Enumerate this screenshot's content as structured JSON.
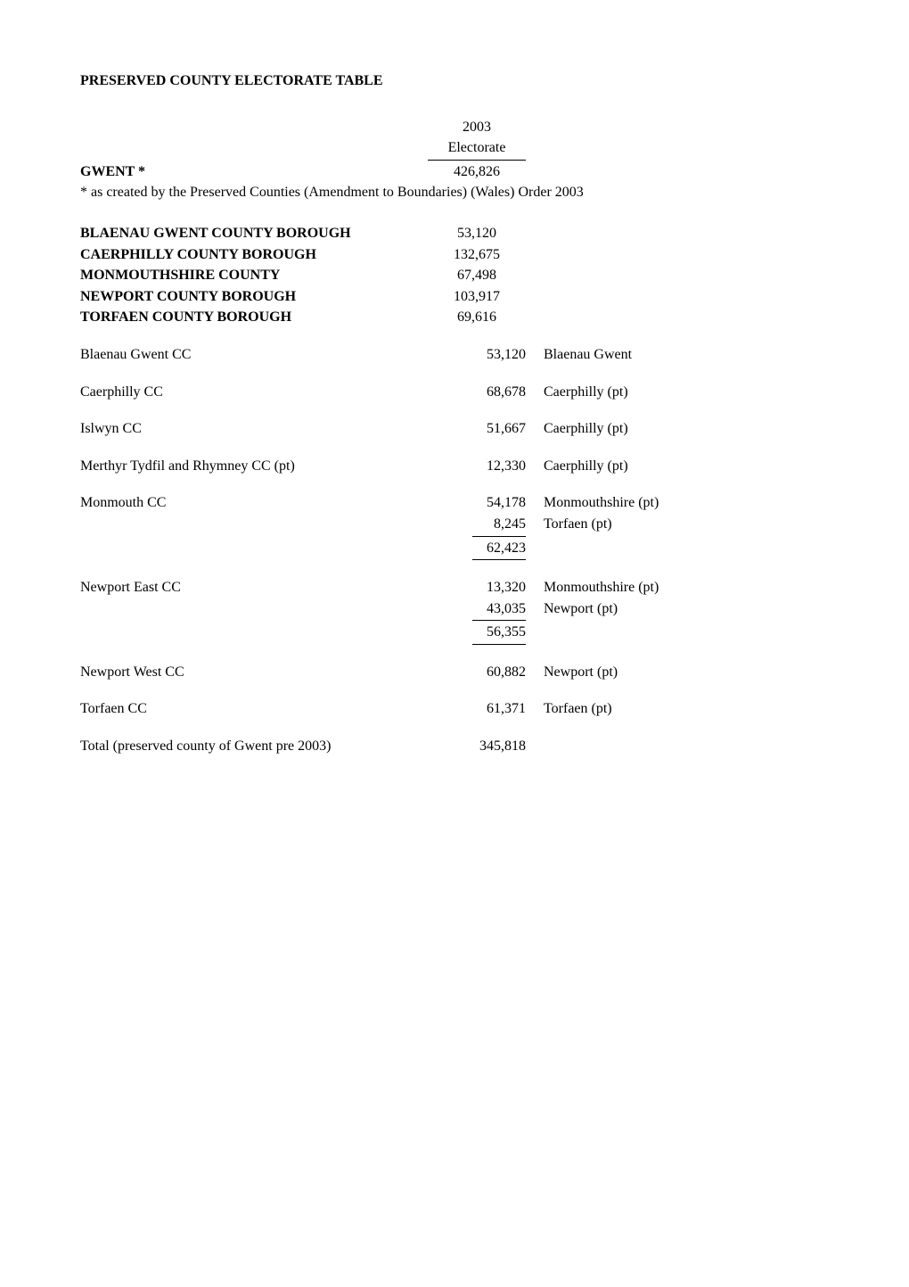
{
  "title": "PRESERVED COUNTY ELECTORATE TABLE",
  "year": "2003",
  "electorate_label": "Electorate",
  "gwent": {
    "label": "GWENT *",
    "value": "426,826"
  },
  "footnote": "* as created by the Preserved Counties (Amendment to Boundaries) (Wales) Order 2003",
  "boroughs": [
    {
      "label": "BLAENAU GWENT COUNTY BOROUGH",
      "value": "53,120"
    },
    {
      "label": "CAERPHILLY COUNTY BOROUGH",
      "value": "132,675"
    },
    {
      "label": "MONMOUTHSHIRE COUNTY",
      "value": "67,498"
    },
    {
      "label": "NEWPORT COUNTY BOROUGH",
      "value": "103,917"
    },
    {
      "label": "TORFAEN COUNTY BOROUGH",
      "value": "69,616"
    }
  ],
  "constituencies": [
    {
      "label": "Blaenau Gwent CC",
      "rows": [
        {
          "value": "53,120",
          "comp": "Blaenau Gwent"
        }
      ]
    },
    {
      "label": "Caerphilly CC",
      "rows": [
        {
          "value": "68,678",
          "comp": "Caerphilly (pt)"
        }
      ]
    },
    {
      "label": "Islwyn CC",
      "rows": [
        {
          "value": "51,667",
          "comp": "Caerphilly (pt)"
        }
      ]
    },
    {
      "label": "Merthyr Tydfil and Rhymney CC (pt)",
      "rows": [
        {
          "value": "12,330",
          "comp": "Caerphilly (pt)"
        }
      ]
    },
    {
      "label": "Monmouth CC",
      "rows": [
        {
          "value": "54,178",
          "comp": "Monmouthshire (pt)"
        },
        {
          "value": "8,245",
          "comp": "Torfaen (pt)",
          "sumline": true
        }
      ],
      "total": "62,423"
    },
    {
      "label": "Newport East CC",
      "rows": [
        {
          "value": "13,320",
          "comp": "Monmouthshire (pt)"
        },
        {
          "value": "43,035",
          "comp": "Newport (pt)",
          "sumline": true
        }
      ],
      "total": "56,355"
    },
    {
      "label": "Newport West CC",
      "rows": [
        {
          "value": "60,882",
          "comp": "Newport (pt)"
        }
      ]
    },
    {
      "label": "Torfaen CC",
      "rows": [
        {
          "value": "61,371",
          "comp": "Torfaen (pt)"
        }
      ]
    }
  ],
  "grand_total": {
    "label": "Total (preserved county of Gwent pre 2003)",
    "value": "345,818"
  }
}
